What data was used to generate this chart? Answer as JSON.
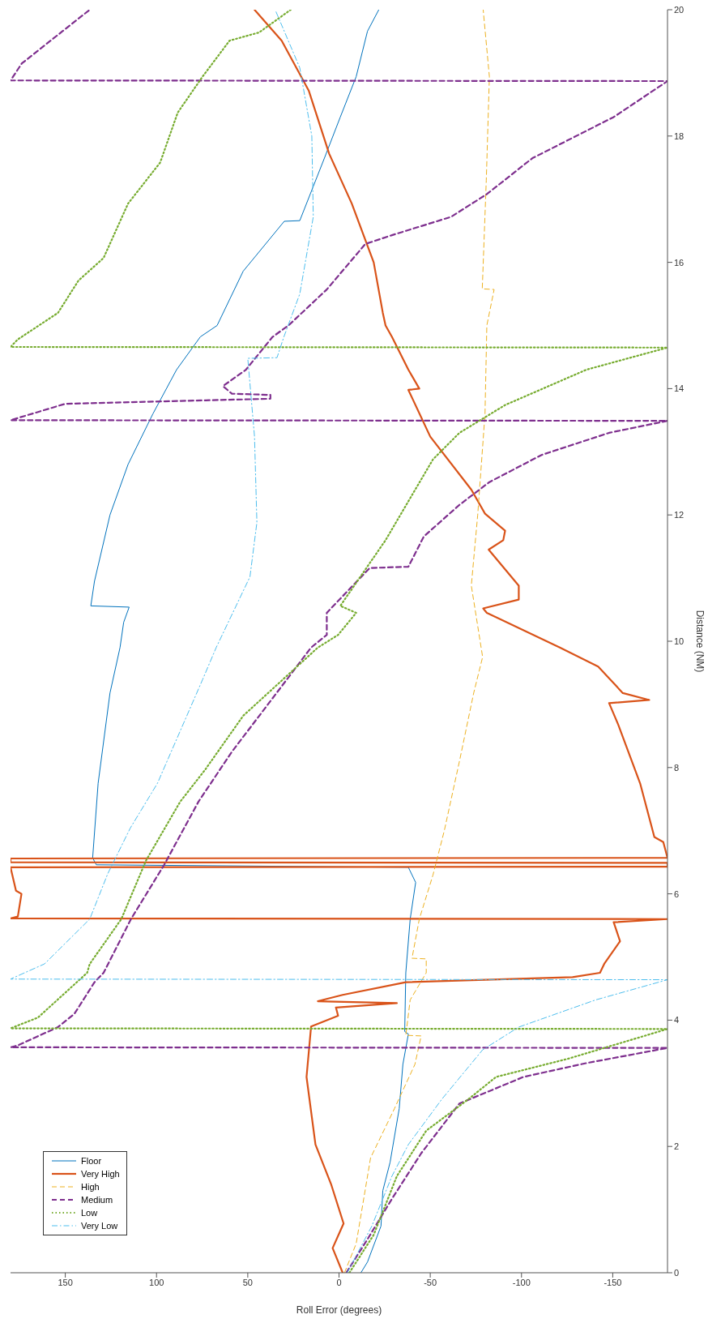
{
  "chart_data": {
    "type": "line",
    "xlabel": "Roll Error (degrees)",
    "ylabel": "Distance (NM)",
    "xlim": [
      180,
      -180
    ],
    "xticks": [
      150,
      100,
      50,
      0,
      -50,
      -100,
      -150
    ],
    "ylim": [
      0,
      20
    ],
    "yticks": [
      0,
      2,
      4,
      6,
      8,
      10,
      12,
      14,
      16,
      18,
      20
    ],
    "legend": "bottom left",
    "series": [
      {
        "name": "Floor",
        "color": "#0072bd",
        "line_style": "solid",
        "values": [
          0,
          0.17,
          0.74,
          1.3,
          1.75,
          2.6,
          3.3,
          3.78,
          3.82,
          4.75,
          5.6,
          6.18,
          6.42,
          6.46,
          6.57,
          7.75,
          9.18,
          9.9,
          10.3,
          10.54,
          10.56,
          10.95,
          12.0,
          12.8,
          13.6,
          14.3,
          14.82,
          15.0,
          15.86,
          16.65,
          16.66,
          17.65,
          18.3,
          18.94,
          19.66,
          20
        ],
        "x": [
          -12,
          -15.6,
          -23,
          -24,
          -28,
          -33,
          -35,
          -38,
          -36,
          -36.6,
          -39,
          -42,
          -38,
          133,
          135,
          132,
          125.5,
          120,
          118,
          115,
          136,
          134,
          125.5,
          115.6,
          102,
          89,
          76,
          66.8,
          52.5,
          30,
          21.5,
          8,
          -0.7,
          -9.4,
          -15.6,
          -21.8
        ]
      },
      {
        "name": "Very High",
        "color": "#d95319",
        "line_style": "solid",
        "values": [
          0,
          0.39,
          0.78,
          1.39,
          2.03,
          3.1,
          3.9,
          4.07,
          4.2,
          4.27,
          4.3,
          4.4,
          4.6,
          4.68,
          4.75,
          4.9,
          5.25,
          5.55,
          5.6,
          5.61,
          5.64,
          6.0,
          6.05,
          6.42,
          6.43,
          6.49,
          6.5,
          6.56,
          6.57,
          6.82,
          6.9,
          7.75,
          8.68,
          9.02,
          9.07,
          9.18,
          9.6,
          9.9,
          10.45,
          10.52,
          10.66,
          10.88,
          11.45,
          11.6,
          11.75,
          12.02,
          12.4,
          13.24,
          13.98,
          14.0,
          14.3,
          14.82,
          15.0,
          15.2,
          16.0,
          16.93,
          17.72,
          18.72,
          19.51,
          20
        ],
        "x": [
          -2,
          3.5,
          -2.5,
          4.2,
          12.9,
          17.8,
          15.3,
          0.5,
          1.7,
          -31.7,
          11.6,
          -2,
          -36.6,
          -128,
          -143,
          -145.5,
          -154,
          -150.5,
          -180,
          180,
          176,
          174,
          177,
          180,
          -180,
          -180,
          180,
          180,
          -180,
          -177.7,
          -172.8,
          -165,
          -153,
          -148,
          -170,
          -155.5,
          -142,
          -121,
          -81,
          -79,
          -98.5,
          -98.5,
          -82,
          -90,
          -91,
          -80,
          -72.5,
          -50,
          -38,
          -44,
          -38,
          -29,
          -25.5,
          -24,
          -19,
          -7,
          5.4,
          16.6,
          31.4,
          46.3
        ]
      },
      {
        "name": "High",
        "color": "#edb120",
        "line_style": "dashed",
        "values": [
          0,
          0.46,
          1.32,
          1.82,
          2.6,
          3.3,
          3.75,
          3.76,
          4.32,
          4.75,
          4.97,
          4.98,
          5.6,
          6.3,
          7.0,
          8.1,
          9.18,
          9.75,
          10.88,
          12.0,
          13.6,
          15.0,
          15.57,
          15.58,
          17.3,
          18.94,
          20
        ],
        "x": [
          -3,
          -9.4,
          -14.4,
          -17.3,
          -30.4,
          -41.6,
          -45,
          -36.6,
          -39,
          -47.8,
          -47.8,
          -40,
          -44,
          -51.5,
          -57.7,
          -66,
          -73.8,
          -78.7,
          -72.5,
          -76,
          -80,
          -81,
          -85,
          -78.5,
          -80.7,
          -82.4,
          -79
        ]
      },
      {
        "name": "Medium",
        "color": "#7e2f8e",
        "line_style": "dashed",
        "values": [
          0,
          0.53,
          1.17,
          1.89,
          2.68,
          3.1,
          3.32,
          3.56,
          3.57,
          3.6,
          3.89,
          4.1,
          4.6,
          4.75,
          5.6,
          6.46,
          7.46,
          8.25,
          8.96,
          9.9,
          10.1,
          10.45,
          11.16,
          11.18,
          11.66,
          12.16,
          12.52,
          12.95,
          13.3,
          13.49,
          13.5,
          13.76,
          13.84,
          13.9,
          13.92,
          14.04,
          14.3,
          14.82,
          15.0,
          15.57,
          16.29,
          16.43,
          16.72,
          17.08,
          17.65,
          18.3,
          18.87,
          18.88,
          19.15,
          19.66,
          20
        ],
        "x": [
          -4,
          -15.6,
          -29,
          -45,
          -66,
          -101,
          -135.6,
          -180,
          180,
          176,
          154,
          145,
          134,
          129,
          114,
          95.8,
          77,
          58.7,
          40,
          15.3,
          6.7,
          6.7,
          -16.8,
          -38,
          -46.5,
          -66,
          -82.4,
          -111,
          -148,
          -180,
          180,
          150,
          37.6,
          37.6,
          58.7,
          63.6,
          51,
          36.4,
          27.7,
          6.7,
          -14.4,
          -29,
          -61.4,
          -81,
          -106,
          -150.5,
          -180,
          180,
          173.8,
          151.5,
          136.6
        ]
      },
      {
        "name": "Low",
        "color": "#77ac30",
        "line_style": "dotted",
        "values": [
          0,
          0.6,
          1.53,
          2.25,
          2.75,
          3.1,
          3.39,
          3.86,
          3.87,
          4.04,
          4.75,
          4.89,
          5.6,
          6.53,
          7.46,
          7.96,
          8.82,
          9.9,
          10.1,
          10.45,
          10.56,
          11.6,
          12.88,
          13.3,
          13.74,
          14.3,
          14.65,
          14.66,
          14.78,
          15.2,
          15.71,
          16.07,
          16.93,
          17.58,
          18.37,
          18.94,
          19.51,
          19.64,
          20
        ],
        "x": [
          -5.7,
          -19,
          -31.7,
          -47.8,
          -71,
          -86,
          -125.7,
          -180,
          180,
          165,
          138,
          136.6,
          119.3,
          105.7,
          87,
          73.5,
          52.5,
          11.6,
          0.5,
          -9.4,
          -0.7,
          -25.5,
          -51.5,
          -66,
          -91,
          -135.6,
          -180,
          180,
          176,
          154,
          142.8,
          129,
          115.6,
          98,
          88.4,
          74.8,
          60,
          43.8,
          26.5
        ]
      },
      {
        "name": "Very Low",
        "color": "#4dbeee",
        "line_style": "dashdot",
        "values": [
          0,
          0.74,
          1.53,
          2.03,
          2.75,
          3.53,
          3.89,
          4.32,
          4.64,
          4.65,
          4.89,
          5.6,
          6.32,
          7.04,
          7.75,
          9.39,
          9.9,
          11.02,
          11.88,
          13.24,
          14.48,
          14.49,
          14.82,
          15.5,
          16.72,
          18.0,
          19.08,
          20
        ],
        "x": [
          -4.5,
          -18,
          -29,
          -38,
          -56.4,
          -78.7,
          -98.5,
          -140.6,
          -180,
          180,
          161.4,
          136.6,
          126.7,
          114.4,
          99.5,
          74.8,
          67.3,
          48.8,
          45,
          46.3,
          50,
          34,
          30.2,
          21.5,
          14.1,
          14.9,
          21.5,
          35
        ]
      }
    ]
  }
}
